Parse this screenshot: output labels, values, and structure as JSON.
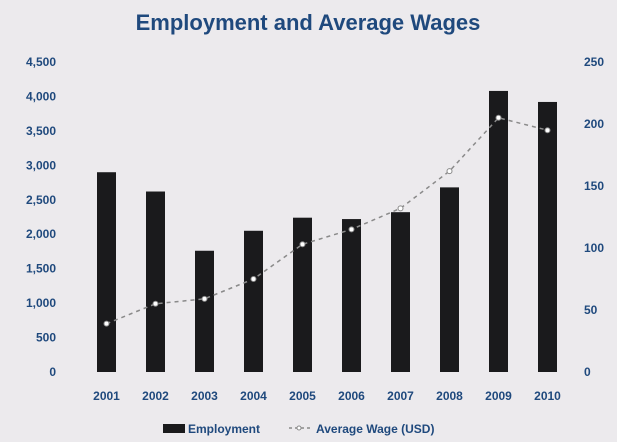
{
  "chart_data": {
    "type": "bar",
    "title": "Employment and Average Wages",
    "categories": [
      "2001",
      "2002",
      "2003",
      "2004",
      "2005",
      "2006",
      "2007",
      "2008",
      "2009",
      "2010"
    ],
    "series": [
      {
        "name": "Employment",
        "type": "bar",
        "axis": "left",
        "values": [
          2900,
          2620,
          1760,
          2050,
          2240,
          2220,
          2320,
          2680,
          4080,
          3920
        ]
      },
      {
        "name": "Average Wage (USD)",
        "type": "line",
        "axis": "right",
        "values": [
          39,
          55,
          59,
          75,
          103,
          115,
          132,
          162,
          205,
          195
        ]
      }
    ],
    "y_left": {
      "ylim": [
        0,
        4500
      ],
      "ticks": [
        0,
        500,
        1000,
        1500,
        2000,
        2500,
        3000,
        3500,
        4000,
        4500
      ],
      "tick_labels": [
        "0",
        "500",
        "1,000",
        "1,500",
        "2,000",
        "2,500",
        "3,000",
        "3,500",
        "4,000",
        "4,500"
      ]
    },
    "y_right": {
      "ylim": [
        0,
        250
      ],
      "ticks": [
        0,
        50,
        100,
        150,
        200,
        250
      ],
      "tick_labels": [
        "0",
        "50",
        "100",
        "150",
        "200",
        "250"
      ]
    },
    "xlabel": "",
    "ylabel": "",
    "grid": false,
    "legend_position": "bottom",
    "colors": {
      "bar": "#1a1a1c",
      "line": "#8a8a8a",
      "text": "#1f497d",
      "background": "#eceaed"
    }
  }
}
